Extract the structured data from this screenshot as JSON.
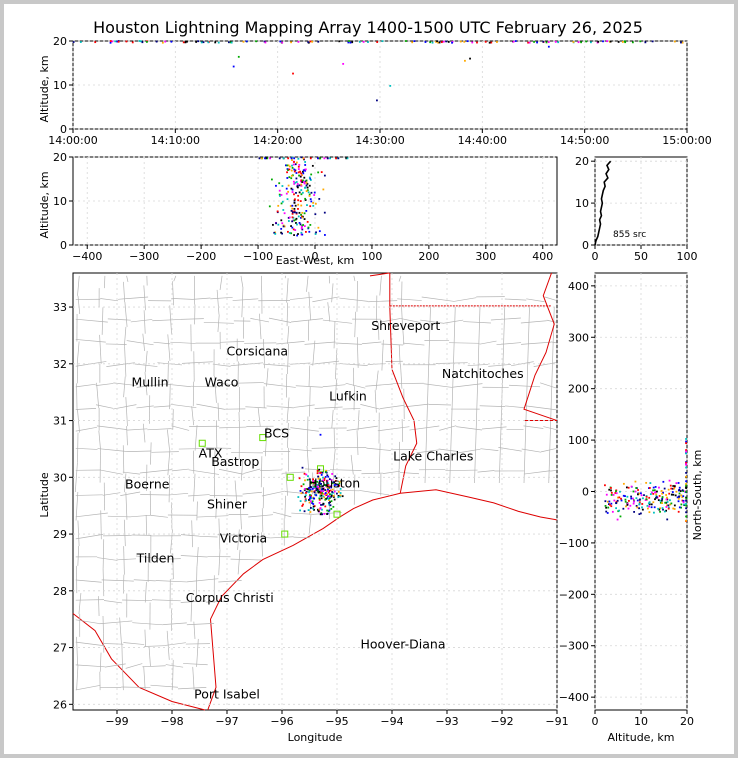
{
  "figure_title": "Houston Lightning Mapping Array 1400-1500 UTC February 26, 2025",
  "colors": {
    "sources": [
      "#0000ff",
      "#00aa00",
      "#ff0000",
      "#ff00ff",
      "#000080",
      "#00c0c0",
      "#ffaa00",
      "#000000"
    ],
    "state_border": "#dd0000",
    "county_lines": "#b4b4b4",
    "station": "#66dd00"
  },
  "chart_data": [
    {
      "id": "time-height",
      "type": "scatter",
      "xlabel": "",
      "ylabel": "Altitude, km",
      "x_ticks": [
        "14:00:00",
        "14:10:00",
        "14:20:00",
        "14:30:00",
        "14:40:00",
        "14:50:00",
        "15:00:00"
      ],
      "xlim_minutes": [
        0,
        60
      ],
      "ylim": [
        0,
        20
      ],
      "y_ticks": [
        0,
        10,
        20
      ],
      "points_minutes_km": [
        [
          15.7,
          14.2
        ],
        [
          16.2,
          16.4
        ],
        [
          21.5,
          12.6
        ],
        [
          26.4,
          14.8
        ],
        [
          29.7,
          6.5
        ],
        [
          31.0,
          9.8
        ],
        [
          38.3,
          15.5
        ],
        [
          38.8,
          16.0
        ],
        [
          46.5,
          18.7
        ],
        [
          20.4,
          19.6
        ],
        [
          23.2,
          19.9
        ],
        [
          28.4,
          19.8
        ]
      ]
    },
    {
      "id": "east-west-altitude",
      "type": "scatter",
      "xlabel": "East-West, km",
      "ylabel": "Altitude, km",
      "xlim": [
        -425,
        425
      ],
      "x_ticks": [
        -400,
        -300,
        -200,
        -100,
        0,
        100,
        200,
        300,
        400
      ],
      "ylim": [
        0,
        20
      ],
      "y_ticks": [
        0,
        10,
        20
      ]
    },
    {
      "id": "altitude-histogram",
      "type": "line",
      "xlim": [
        0,
        100
      ],
      "x_ticks": [
        0,
        50,
        100
      ],
      "ylim": [
        0,
        21
      ],
      "y_ticks": [
        0,
        10,
        20
      ],
      "source_count_label": "855 src",
      "profile_counts_by_km": [
        [
          0,
          0
        ],
        [
          1,
          1
        ],
        [
          2,
          3
        ],
        [
          3,
          4
        ],
        [
          4,
          5
        ],
        [
          5,
          6
        ],
        [
          6,
          5
        ],
        [
          7,
          7
        ],
        [
          8,
          6
        ],
        [
          9,
          7
        ],
        [
          10,
          8
        ],
        [
          11,
          7
        ],
        [
          12,
          8
        ],
        [
          13,
          9
        ],
        [
          14,
          11
        ],
        [
          15,
          10
        ],
        [
          16,
          14
        ],
        [
          17,
          12
        ],
        [
          18,
          15
        ],
        [
          19,
          13
        ],
        [
          20,
          17
        ]
      ]
    },
    {
      "id": "plan-view",
      "type": "scatter",
      "xlabel": "Longitude",
      "ylabel": "Latitude",
      "xlim": [
        -99.8,
        -91.0
      ],
      "x_ticks": [
        -99,
        -98,
        -97,
        -96,
        -95,
        -94,
        -93,
        -92,
        -91
      ],
      "ylim": [
        25.9,
        33.6
      ],
      "y_ticks": [
        26,
        27,
        28,
        29,
        30,
        31,
        32,
        33
      ],
      "cities": [
        {
          "name": "Shreveport",
          "lon": -93.75,
          "lat": 32.6,
          "color": "#000000"
        },
        {
          "name": "Corsicana",
          "lon": -96.45,
          "lat": 32.15,
          "color": "#000000"
        },
        {
          "name": "Natchitoches",
          "lon": -92.35,
          "lat": 31.75,
          "color": "#000000"
        },
        {
          "name": "Mullin",
          "lon": -98.4,
          "lat": 31.6,
          "color": "#ff9944"
        },
        {
          "name": "Waco",
          "lon": -97.1,
          "lat": 31.6,
          "color": "#000000"
        },
        {
          "name": "Lufkin",
          "lon": -94.8,
          "lat": 31.35,
          "color": "#000000"
        },
        {
          "name": "BCS",
          "lon": -96.1,
          "lat": 30.7,
          "color": "#333333",
          "big": true
        },
        {
          "name": "ATX",
          "lon": -97.3,
          "lat": 30.35,
          "color": "#ff9944"
        },
        {
          "name": "Bastrop",
          "lon": -96.85,
          "lat": 30.2,
          "color": "#000000"
        },
        {
          "name": "Lake Charles",
          "lon": -93.25,
          "lat": 30.3,
          "color": "#000000"
        },
        {
          "name": "Boerne",
          "lon": -98.45,
          "lat": 29.8,
          "color": "#000000"
        },
        {
          "name": "Houston",
          "lon": -95.05,
          "lat": 29.82,
          "color": "#ffaa00",
          "big": true
        },
        {
          "name": "Shiner",
          "lon": -97.0,
          "lat": 29.45,
          "color": "#000000"
        },
        {
          "name": "Victoria",
          "lon": -96.7,
          "lat": 28.85,
          "color": "#000000"
        },
        {
          "name": "Tilden",
          "lon": -98.3,
          "lat": 28.5,
          "color": "#000000"
        },
        {
          "name": "Corpus Christi",
          "lon": -96.95,
          "lat": 27.8,
          "color": "#000000"
        },
        {
          "name": "Hoover-Diana",
          "lon": -93.8,
          "lat": 26.98,
          "color": "#1515ee"
        },
        {
          "name": "Port Isabel",
          "lon": -97.0,
          "lat": 26.1,
          "color": "#000000"
        }
      ],
      "stations": [
        {
          "lon": -97.45,
          "lat": 30.6
        },
        {
          "lon": -96.35,
          "lat": 30.7
        },
        {
          "lon": -95.85,
          "lat": 30.0
        },
        {
          "lon": -95.0,
          "lat": 29.35
        },
        {
          "lon": -95.95,
          "lat": 29.0
        },
        {
          "lon": -95.3,
          "lat": 30.15
        }
      ]
    },
    {
      "id": "altitude-north-south",
      "type": "scatter",
      "xlabel": "Altitude, km",
      "ylabel": "North-South, km",
      "xlim": [
        0,
        20
      ],
      "x_ticks": [
        0,
        10,
        20
      ],
      "ylim": [
        -425,
        425
      ],
      "y_ticks": [
        -400,
        -300,
        -200,
        -100,
        0,
        100,
        200,
        300,
        400
      ]
    }
  ]
}
